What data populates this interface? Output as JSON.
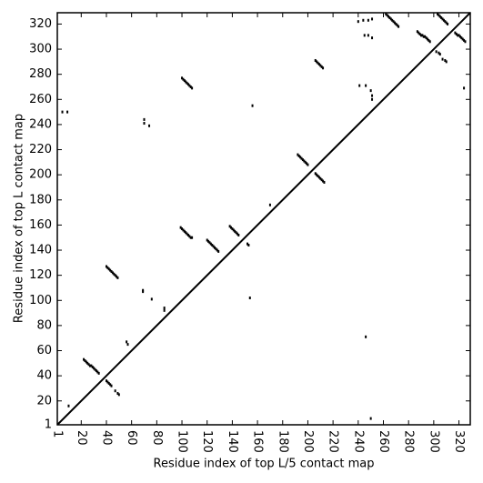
{
  "chart_data": {
    "type": "scatter",
    "xlabel": "Residue index of top L/5 contact map",
    "ylabel": "Residue index of top L contact map",
    "xlim": [
      1,
      329
    ],
    "ylim": [
      1,
      329
    ],
    "xticks": [
      1,
      20,
      40,
      60,
      80,
      100,
      120,
      140,
      160,
      180,
      200,
      220,
      240,
      260,
      280,
      300,
      320
    ],
    "yticks": [
      1,
      20,
      40,
      60,
      80,
      100,
      120,
      140,
      160,
      180,
      200,
      220,
      240,
      260,
      280,
      300,
      320
    ],
    "series": [
      {
        "type": "line",
        "color": "#000000",
        "x": [
          1,
          329
        ],
        "y": [
          1,
          329
        ]
      },
      {
        "type": "scatter",
        "color": "#000000",
        "x": [
          5,
          9,
          70,
          70,
          74,
          100,
          101,
          102,
          103,
          104,
          105,
          106,
          107,
          108,
          206,
          207,
          208,
          209,
          210,
          211,
          212,
          156,
          240,
          244,
          248,
          251,
          245,
          248,
          251,
          241,
          246,
          250,
          251,
          251,
          324,
          262,
          263,
          264,
          265,
          266,
          267,
          268,
          269,
          270,
          271,
          272,
          287,
          288,
          289,
          290,
          291,
          292,
          293,
          294,
          295,
          296,
          297,
          303,
          304,
          305,
          306,
          307,
          308,
          309,
          310,
          311,
          302,
          304,
          305,
          307,
          309,
          310,
          317,
          318,
          319,
          320,
          321,
          322,
          323,
          324,
          325,
          170,
          192,
          193,
          194,
          195,
          196,
          197,
          198,
          199,
          200,
          206,
          207,
          208,
          209,
          210,
          211,
          212,
          213,
          99,
          100,
          101,
          102,
          103,
          104,
          105,
          106,
          107,
          108,
          120,
          121,
          122,
          123,
          124,
          125,
          126,
          127,
          128,
          129,
          138,
          139,
          140,
          141,
          142,
          143,
          144,
          145,
          152,
          153,
          154,
          69,
          69,
          76,
          86,
          86,
          40,
          41,
          42,
          43,
          44,
          45,
          46,
          47,
          48,
          49,
          22,
          23,
          24,
          25,
          26,
          27,
          28,
          29,
          30,
          31,
          32,
          33,
          34,
          40,
          41,
          42,
          43,
          44,
          47,
          49,
          50,
          56,
          57,
          10,
          246,
          250
        ],
        "y": [
          250,
          250,
          244,
          241,
          239,
          277,
          276,
          275,
          274,
          273,
          272,
          271,
          270,
          269,
          291,
          290,
          289,
          288,
          287,
          286,
          285,
          255,
          322,
          323,
          323,
          324,
          311,
          311,
          309,
          271,
          271,
          267,
          263,
          260,
          269,
          328,
          327,
          326,
          325,
          324,
          323,
          322,
          321,
          320,
          319,
          318,
          314,
          313,
          312,
          311,
          311,
          310,
          310,
          309,
          308,
          307,
          306,
          328,
          327,
          326,
          325,
          324,
          323,
          322,
          321,
          320,
          298,
          297,
          296,
          292,
          291,
          290,
          313,
          312,
          311,
          311,
          310,
          309,
          308,
          307,
          306,
          176,
          216,
          215,
          214,
          213,
          212,
          211,
          210,
          209,
          208,
          201,
          200,
          199,
          198,
          197,
          196,
          195,
          194,
          158,
          157,
          156,
          155,
          154,
          153,
          152,
          151,
          150,
          150,
          148,
          147,
          146,
          145,
          144,
          143,
          142,
          141,
          140,
          139,
          159,
          158,
          157,
          156,
          155,
          154,
          153,
          152,
          145,
          144,
          102,
          108,
          107,
          101,
          94,
          92,
          127,
          126,
          125,
          124,
          123,
          122,
          121,
          120,
          119,
          118,
          53,
          52,
          51,
          50,
          49,
          48,
          48,
          47,
          46,
          45,
          44,
          43,
          42,
          36,
          35,
          34,
          33,
          32,
          28,
          26,
          25,
          67,
          65,
          16,
          71,
          6
        ]
      }
    ]
  }
}
